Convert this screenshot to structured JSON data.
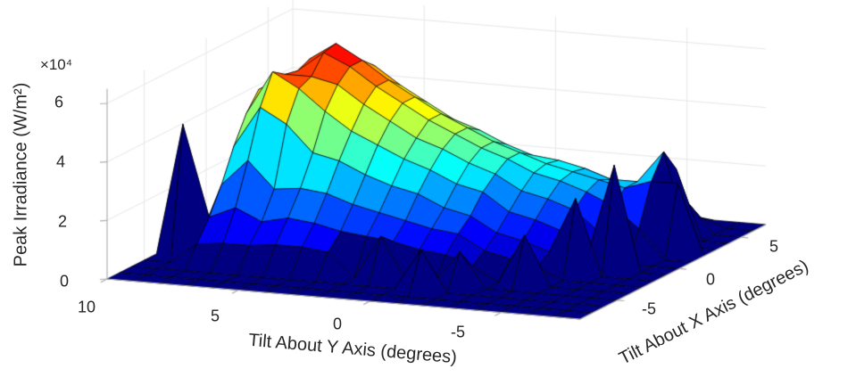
{
  "figure": {
    "background": "#ffffff",
    "colors": {
      "surface_base": "#000080",
      "surface_peak": "#ff3300",
      "axis_line": "#b0b0b0",
      "wall_gridline": "#e7e7e7",
      "text": "#262626",
      "mesh_edge": "#000000"
    }
  },
  "chart_data": {
    "type": "surface",
    "title": "",
    "xlabel": "Tilt About Y Axis (degrees)",
    "ylabel": "Tilt About X Axis (degrees)",
    "zlabel": "Peak Irradiance (W/m²)",
    "z_multiplier": "×10⁴",
    "colormap": "jet",
    "grid": true,
    "legend": "none",
    "x_ticks": [
      "10",
      "5",
      "0",
      "-5"
    ],
    "y_ticks": [
      "-5",
      "0",
      "5"
    ],
    "z_ticks": [
      "0",
      "2",
      "4",
      "6"
    ],
    "x_tick_values": [
      10,
      5,
      0,
      -5
    ],
    "y_tick_values": [
      -5,
      0,
      5
    ],
    "z_tick_values": [
      0,
      20000,
      40000,
      60000
    ],
    "x_range": [
      10,
      -8
    ],
    "y_range": [
      -8,
      7
    ],
    "z_range": [
      0,
      65000
    ],
    "x": [
      10,
      9,
      8,
      7,
      6,
      5,
      4,
      3,
      2,
      1,
      0,
      -1,
      -2,
      -3,
      -4,
      -5,
      -6,
      -7,
      -8
    ],
    "y": [
      -8,
      -7,
      -6,
      -5,
      -4,
      -3,
      -2,
      -1,
      0,
      1,
      2,
      3,
      4,
      5,
      6,
      7
    ],
    "z": [
      [
        0,
        0,
        0,
        0,
        0,
        0,
        0,
        0,
        0,
        0,
        0,
        0,
        0,
        0,
        0,
        0
      ],
      [
        0,
        0,
        0,
        0,
        45000,
        0,
        0,
        0,
        0,
        0,
        0,
        0,
        0,
        0,
        0,
        0
      ],
      [
        0,
        0,
        0,
        7000,
        14000,
        23000,
        34000,
        43000,
        49000,
        49000,
        43000,
        34000,
        23000,
        14000,
        7000,
        3000
      ],
      [
        0,
        0,
        0,
        8000,
        18000,
        32000,
        48000,
        58000,
        55000,
        54000,
        56000,
        46000,
        34000,
        22000,
        12000,
        5000
      ],
      [
        0,
        0,
        0,
        8000,
        14000,
        23000,
        43000,
        53000,
        55000,
        61000,
        62000,
        55000,
        46000,
        34000,
        23000,
        14000
      ],
      [
        0,
        0,
        0,
        9000,
        16000,
        24000,
        34000,
        46000,
        53000,
        57000,
        57000,
        53000,
        44000,
        34000,
        24000,
        16000
      ],
      [
        0,
        0,
        0,
        9000,
        15000,
        23000,
        32000,
        40000,
        47000,
        51000,
        51000,
        47000,
        40000,
        32000,
        23000,
        15000
      ],
      [
        0,
        0,
        0,
        8000,
        13000,
        20000,
        28000,
        36000,
        42000,
        46000,
        46000,
        42000,
        36000,
        28000,
        20000,
        13000
      ],
      [
        0,
        0,
        0,
        0,
        12000,
        18000,
        25000,
        32000,
        37000,
        41000,
        41000,
        37000,
        32000,
        25000,
        18000,
        12000
      ],
      [
        0,
        0,
        0,
        15000,
        11000,
        16000,
        23000,
        29000,
        34000,
        37000,
        37000,
        34000,
        29000,
        23000,
        16000,
        11000
      ],
      [
        0,
        0,
        0,
        0,
        9000,
        14000,
        19000,
        25000,
        30000,
        33000,
        33000,
        30000,
        25000,
        19000,
        14000,
        9000
      ],
      [
        0,
        0,
        14000,
        0,
        8000,
        13000,
        17000,
        23000,
        27000,
        30000,
        30000,
        27000,
        23000,
        17000,
        13000,
        8000
      ],
      [
        0,
        0,
        0,
        12000,
        5000,
        8000,
        12000,
        17000,
        22000,
        26000,
        27000,
        26000,
        22000,
        17000,
        12000,
        8000
      ],
      [
        0,
        0,
        0,
        0,
        0,
        6000,
        10000,
        15000,
        20000,
        24000,
        25000,
        24000,
        20000,
        15000,
        10000,
        6000
      ],
      [
        0,
        0,
        0,
        0,
        17000,
        4000,
        7000,
        12000,
        17000,
        21000,
        23000,
        21000,
        17000,
        12000,
        7000,
        4000
      ],
      [
        0,
        0,
        0,
        0,
        0,
        0,
        26000,
        5000,
        10000,
        17000,
        21000,
        21000,
        17000,
        10000,
        5000,
        0
      ],
      [
        0,
        0,
        0,
        0,
        0,
        0,
        0,
        36000,
        0,
        10000,
        24000,
        32000,
        24000,
        10000,
        3000,
        0
      ],
      [
        0,
        0,
        0,
        0,
        0,
        0,
        0,
        0,
        0,
        0,
        24000,
        0,
        0,
        0,
        0,
        0
      ],
      [
        0,
        0,
        0,
        0,
        0,
        0,
        0,
        0,
        0,
        0,
        0,
        0,
        0,
        0,
        0,
        0
      ]
    ]
  }
}
